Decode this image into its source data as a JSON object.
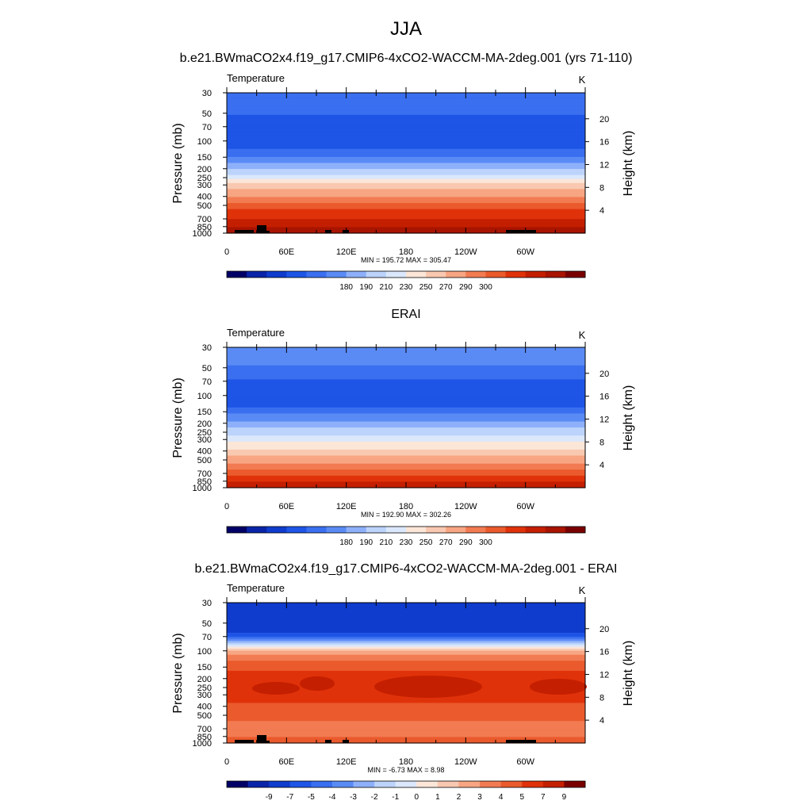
{
  "figure_title": "JJA",
  "chart_data": [
    {
      "type": "heatmap",
      "title": "b.e21.BWmaCO2x4.f19_g17.CMIP6-4xCO2-WACCM-MA-2deg.001 (yrs 71-110)",
      "variable": "Temperature",
      "units": "K",
      "ylabel": "Pressure (mb)",
      "y2label": "Height (km)",
      "xticks": [
        "0",
        "60E",
        "120E",
        "180",
        "120W",
        "60W"
      ],
      "pressure_ticks": [
        30,
        50,
        70,
        100,
        150,
        200,
        250,
        300,
        400,
        500,
        700,
        850,
        1000
      ],
      "height_ticks": [
        4,
        8,
        12,
        16,
        20
      ],
      "stats": "MIN = 195.72  MAX = 305.47",
      "color_labels": [
        "180",
        "190",
        "210",
        "230",
        "250",
        "270",
        "290",
        "300"
      ],
      "ground_blocks": true,
      "profile": [
        {
          "p": 30,
          "v": 4
        },
        {
          "p": 45,
          "v": 4
        },
        {
          "p": 60,
          "v": 3
        },
        {
          "p": 110,
          "v": 3
        },
        {
          "p": 135,
          "v": 4
        },
        {
          "p": 160,
          "v": 5
        },
        {
          "p": 190,
          "v": 6
        },
        {
          "p": 215,
          "v": 7
        },
        {
          "p": 245,
          "v": 8
        },
        {
          "p": 275,
          "v": 9
        },
        {
          "p": 300,
          "v": 10
        },
        {
          "p": 370,
          "v": 11
        },
        {
          "p": 440,
          "v": 12
        },
        {
          "p": 510,
          "v": 13
        },
        {
          "p": 600,
          "v": 14
        },
        {
          "p": 790,
          "v": 15
        },
        {
          "p": 930,
          "v": 16
        },
        {
          "p": 1000,
          "v": 16
        }
      ]
    },
    {
      "type": "heatmap",
      "title": "ERAI",
      "variable": "Temperature",
      "units": "K",
      "ylabel": "Pressure (mb)",
      "y2label": "Height (km)",
      "xticks": [
        "0",
        "60E",
        "120E",
        "180",
        "120W",
        "60W"
      ],
      "pressure_ticks": [
        30,
        50,
        70,
        100,
        150,
        200,
        250,
        300,
        400,
        500,
        700,
        850,
        1000
      ],
      "height_ticks": [
        4,
        8,
        12,
        16,
        20
      ],
      "stats": "MIN = 192.90  MAX = 302.26",
      "color_labels": [
        "180",
        "190",
        "210",
        "230",
        "250",
        "270",
        "290",
        "300"
      ],
      "ground_blocks": false,
      "profile": [
        {
          "p": 30,
          "v": 5
        },
        {
          "p": 42,
          "v": 5
        },
        {
          "p": 55,
          "v": 4
        },
        {
          "p": 80,
          "v": 3
        },
        {
          "p": 120,
          "v": 3
        },
        {
          "p": 145,
          "v": 4
        },
        {
          "p": 175,
          "v": 5
        },
        {
          "p": 210,
          "v": 6
        },
        {
          "p": 245,
          "v": 7
        },
        {
          "p": 290,
          "v": 8
        },
        {
          "p": 360,
          "v": 9
        },
        {
          "p": 420,
          "v": 10
        },
        {
          "p": 500,
          "v": 11
        },
        {
          "p": 580,
          "v": 12
        },
        {
          "p": 680,
          "v": 13
        },
        {
          "p": 820,
          "v": 14
        },
        {
          "p": 930,
          "v": 15
        },
        {
          "p": 1000,
          "v": 15
        }
      ]
    },
    {
      "type": "heatmap",
      "title": "b.e21.BWmaCO2x4.f19_g17.CMIP6-4xCO2-WACCM-MA-2deg.001 - ERAI",
      "variable": "Temperature",
      "units": "K",
      "ylabel": "Pressure (mb)",
      "y2label": "Height (km)",
      "xticks": [
        "0",
        "60E",
        "120E",
        "180",
        "120W",
        "60W"
      ],
      "pressure_ticks": [
        30,
        50,
        70,
        100,
        150,
        200,
        250,
        300,
        400,
        500,
        700,
        850,
        1000
      ],
      "height_ticks": [
        4,
        8,
        12,
        16,
        20
      ],
      "stats": "MIN =  -6.73  MAX =   8.98",
      "color_labels": [
        "-9",
        "-7",
        "-5",
        "-4",
        "-3",
        "-2",
        "-1",
        "0",
        "1",
        "2",
        "3",
        "4",
        "5",
        "7",
        "9"
      ],
      "ground_blocks": true,
      "profile": [
        {
          "p": 30,
          "v": 2
        },
        {
          "p": 60,
          "v": 2
        },
        {
          "p": 68,
          "v": 3
        },
        {
          "p": 74,
          "v": 5
        },
        {
          "p": 80,
          "v": 6
        },
        {
          "p": 86,
          "v": 8
        },
        {
          "p": 92,
          "v": 9
        },
        {
          "p": 98,
          "v": 10
        },
        {
          "p": 106,
          "v": 11
        },
        {
          "p": 118,
          "v": 12
        },
        {
          "p": 135,
          "v": 13
        },
        {
          "p": 200,
          "v": 14
        },
        {
          "p": 330,
          "v": 14
        },
        {
          "p": 420,
          "v": 13
        },
        {
          "p": 520,
          "v": 13
        },
        {
          "p": 650,
          "v": 12
        },
        {
          "p": 800,
          "v": 12
        },
        {
          "p": 900,
          "v": 13
        },
        {
          "p": 1000,
          "v": 13
        }
      ]
    }
  ],
  "palette": [
    "#000066",
    "#0a24a8",
    "#0f3ccc",
    "#1e55e6",
    "#3a6ff0",
    "#5a8bf5",
    "#8eb0fa",
    "#bcd3fb",
    "#dbe8fc",
    "#fbe6d8",
    "#f9c8b0",
    "#f7a582",
    "#f27b52",
    "#ea5a2c",
    "#e0320a",
    "#c41f00",
    "#a81400",
    "#7a0000"
  ],
  "diff_palette": [
    "#000066",
    "#0a24a8",
    "#0f3ccc",
    "#1e55e6",
    "#3a6ff0",
    "#5a8bf5",
    "#8eb0fa",
    "#bcd3fb",
    "#dbe8fc",
    "#fbe6d8",
    "#f9c8b0",
    "#f7a582",
    "#f27b52",
    "#ea5a2c",
    "#e0320a",
    "#c41f00",
    "#7a0000"
  ]
}
